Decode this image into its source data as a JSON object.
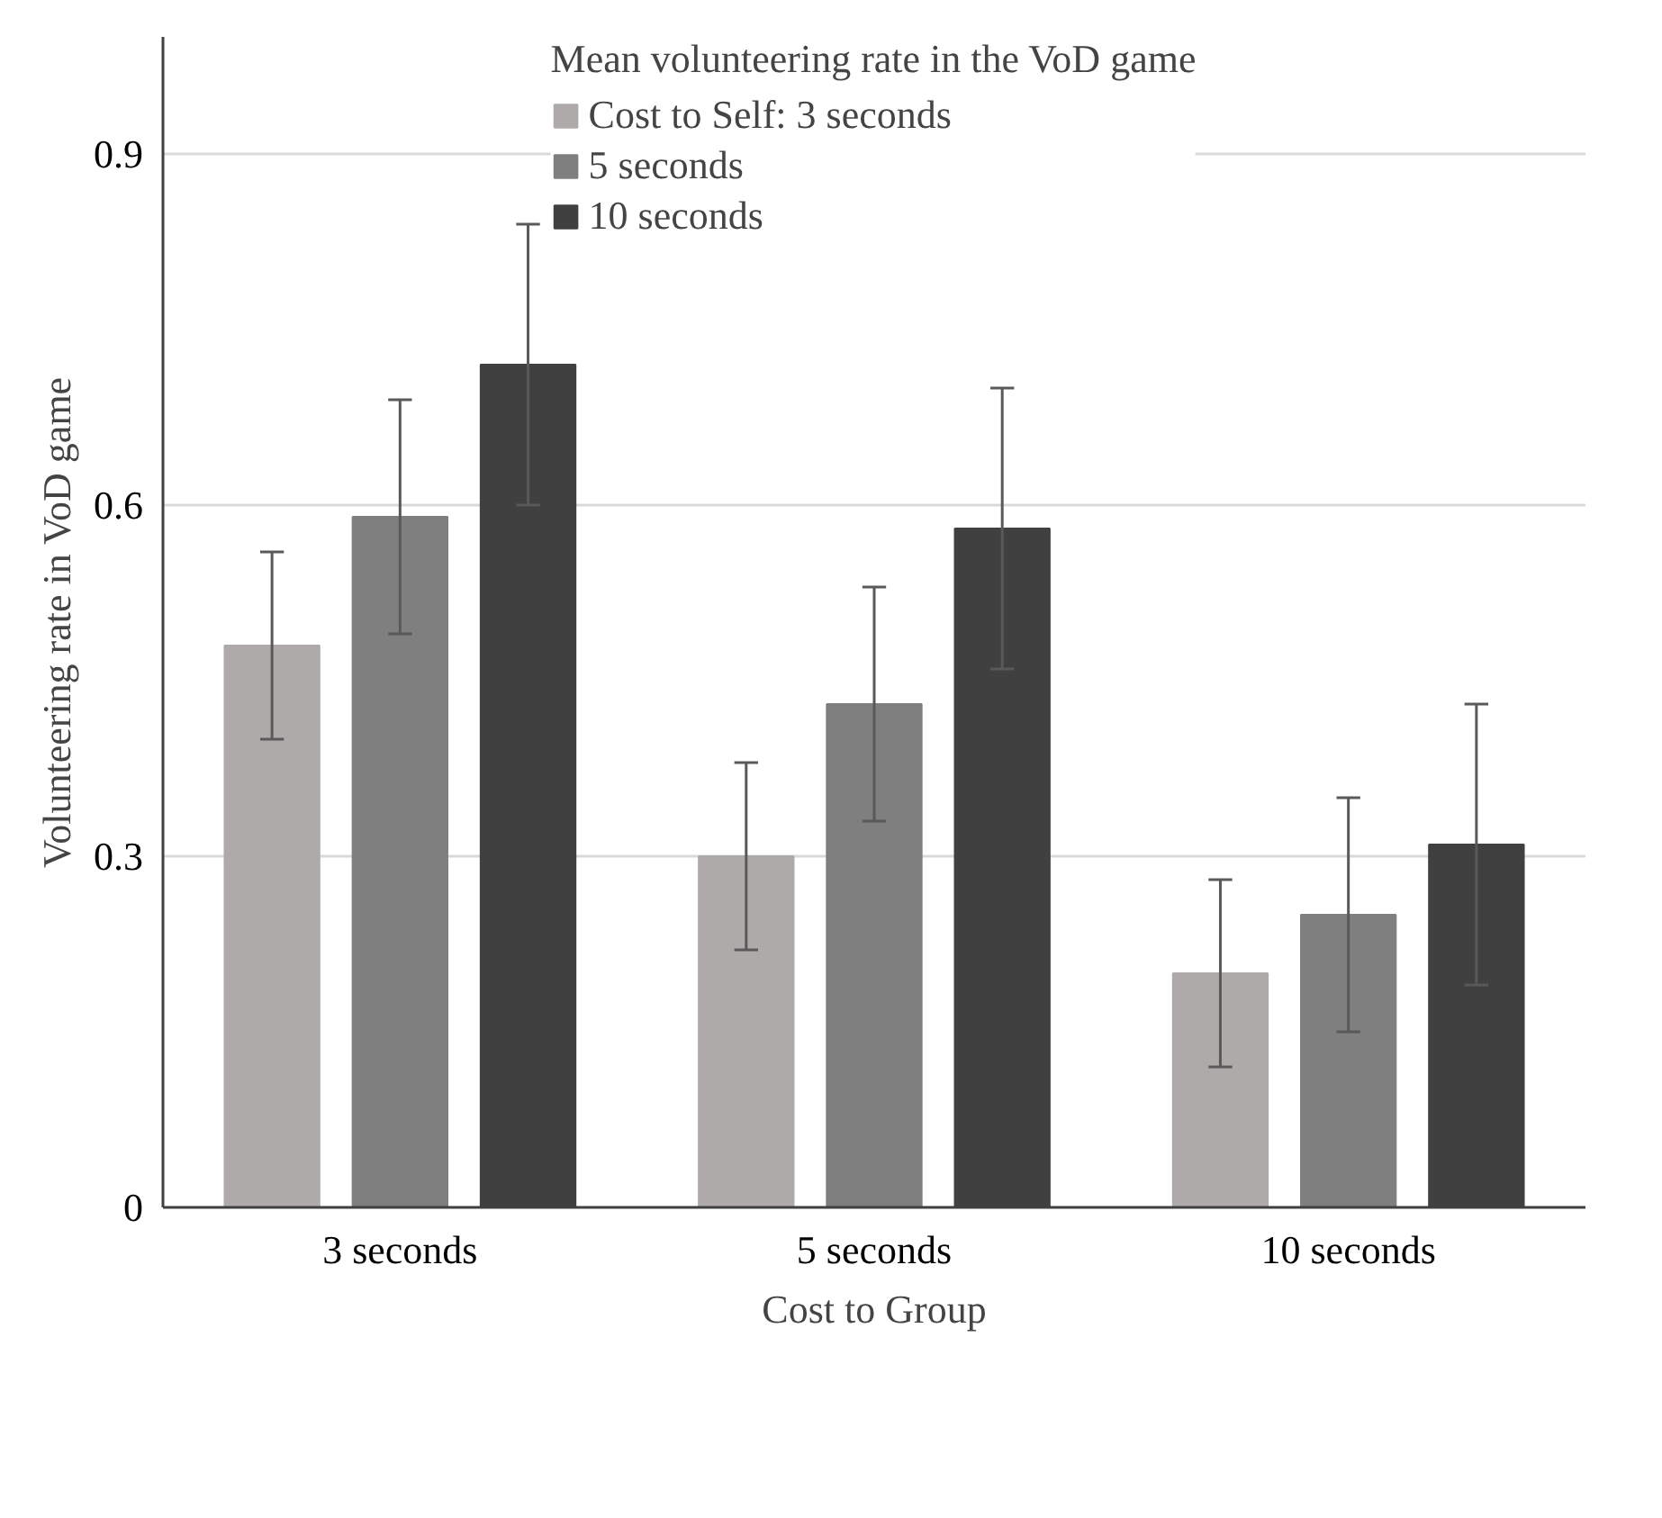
{
  "chart_data": {
    "type": "bar",
    "legend_title": "Mean volunteering rate in the VoD game",
    "xlabel": "Cost to Group",
    "ylabel": "Volunteering rate in VoD game",
    "categories": [
      "3 seconds",
      "5 seconds",
      "10 seconds"
    ],
    "series": [
      {
        "name": "Cost to Self: 3 seconds",
        "color": "#aeaaaa",
        "values": [
          0.48,
          0.3,
          0.2
        ],
        "errors": [
          0.08,
          0.08,
          0.08
        ]
      },
      {
        "name": "5 seconds",
        "color": "#7f7f7f",
        "values": [
          0.59,
          0.43,
          0.25
        ],
        "errors": [
          0.1,
          0.1,
          0.1
        ]
      },
      {
        "name": "10 seconds",
        "color": "#404040",
        "values": [
          0.72,
          0.58,
          0.31
        ],
        "errors": [
          0.12,
          0.12,
          0.12
        ]
      }
    ],
    "ylim": [
      0,
      1.0
    ],
    "yticks": [
      0,
      0.3,
      0.6,
      0.9
    ],
    "grid": "y",
    "legend": "top"
  }
}
